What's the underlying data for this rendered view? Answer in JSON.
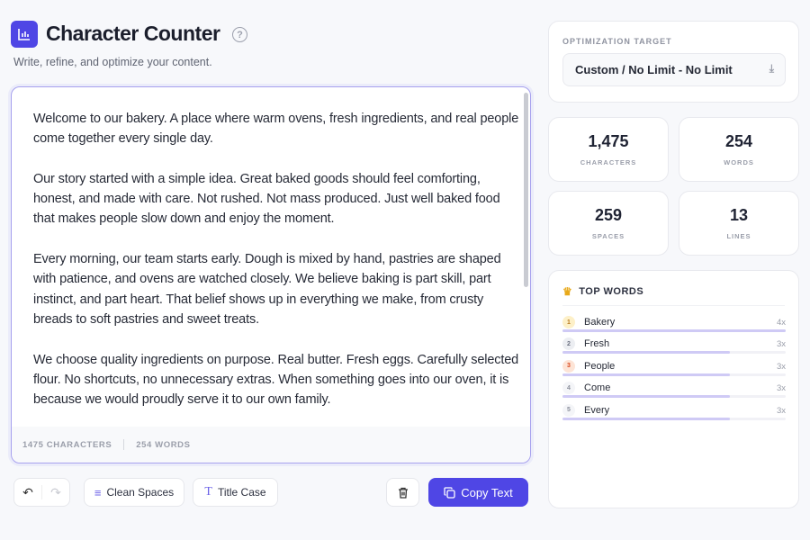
{
  "header": {
    "title": "Character Counter",
    "subtitle": "Write, refine, and optimize your content.",
    "help": "?"
  },
  "editor": {
    "paragraphs": [
      "Welcome to our bakery. A place where warm ovens, fresh ingredients, and real people\ncome together every single day.",
      "Our story started with a simple idea. Great baked goods should feel comforting,\nhonest, and made with care. Not rushed. Not mass produced. Just well baked food\nthat makes people slow down and enjoy the moment.",
      "Every morning, our team starts early. Dough is mixed by hand, pastries are shaped\nwith patience, and ovens are watched closely. We believe baking is part skill, part\ninstinct, and part heart. That belief shows up in everything we make, from crusty\nbreads to soft pastries and sweet treats.",
      "We choose quality ingredients on purpose. Real butter. Fresh eggs. Carefully selected\nflour. No shortcuts, no unnecessary extras. When something goes into our oven, it is\nbecause we would proudly serve it to our own family."
    ],
    "footer_chars": "1475 CHARACTERS",
    "footer_words": "254 WORDS"
  },
  "toolbar": {
    "clean_spaces": "Clean Spaces",
    "title_case": "Title Case",
    "copy": "Copy Text"
  },
  "optimization": {
    "label": "OPTIMIZATION TARGET",
    "value": "Custom / No Limit - No Limit"
  },
  "stats": [
    {
      "value": "1,475",
      "label": "CHARACTERS"
    },
    {
      "value": "254",
      "label": "WORDS"
    },
    {
      "value": "259",
      "label": "SPACES"
    },
    {
      "value": "13",
      "label": "LINES"
    }
  ],
  "top_words": {
    "title": "TOP WORDS",
    "items": [
      {
        "rank": "1",
        "word": "Bakery",
        "count": "4x",
        "fraction": 1.0,
        "color": "#fdf0c8",
        "text": "#b7791f"
      },
      {
        "rank": "2",
        "word": "Fresh",
        "count": "3x",
        "fraction": 0.75,
        "color": "#eceef2",
        "text": "#6b7080"
      },
      {
        "rank": "3",
        "word": "People",
        "count": "3x",
        "fraction": 0.75,
        "color": "#fde4d6",
        "text": "#d9481e"
      },
      {
        "rank": "4",
        "word": "Come",
        "count": "3x",
        "fraction": 0.75,
        "color": "#f4f5f8",
        "text": "#8a8e9a"
      },
      {
        "rank": "5",
        "word": "Every",
        "count": "3x",
        "fraction": 0.75,
        "color": "#f4f5f8",
        "text": "#8a8e9a"
      }
    ]
  },
  "colors": {
    "accent": "#4f46e5"
  }
}
